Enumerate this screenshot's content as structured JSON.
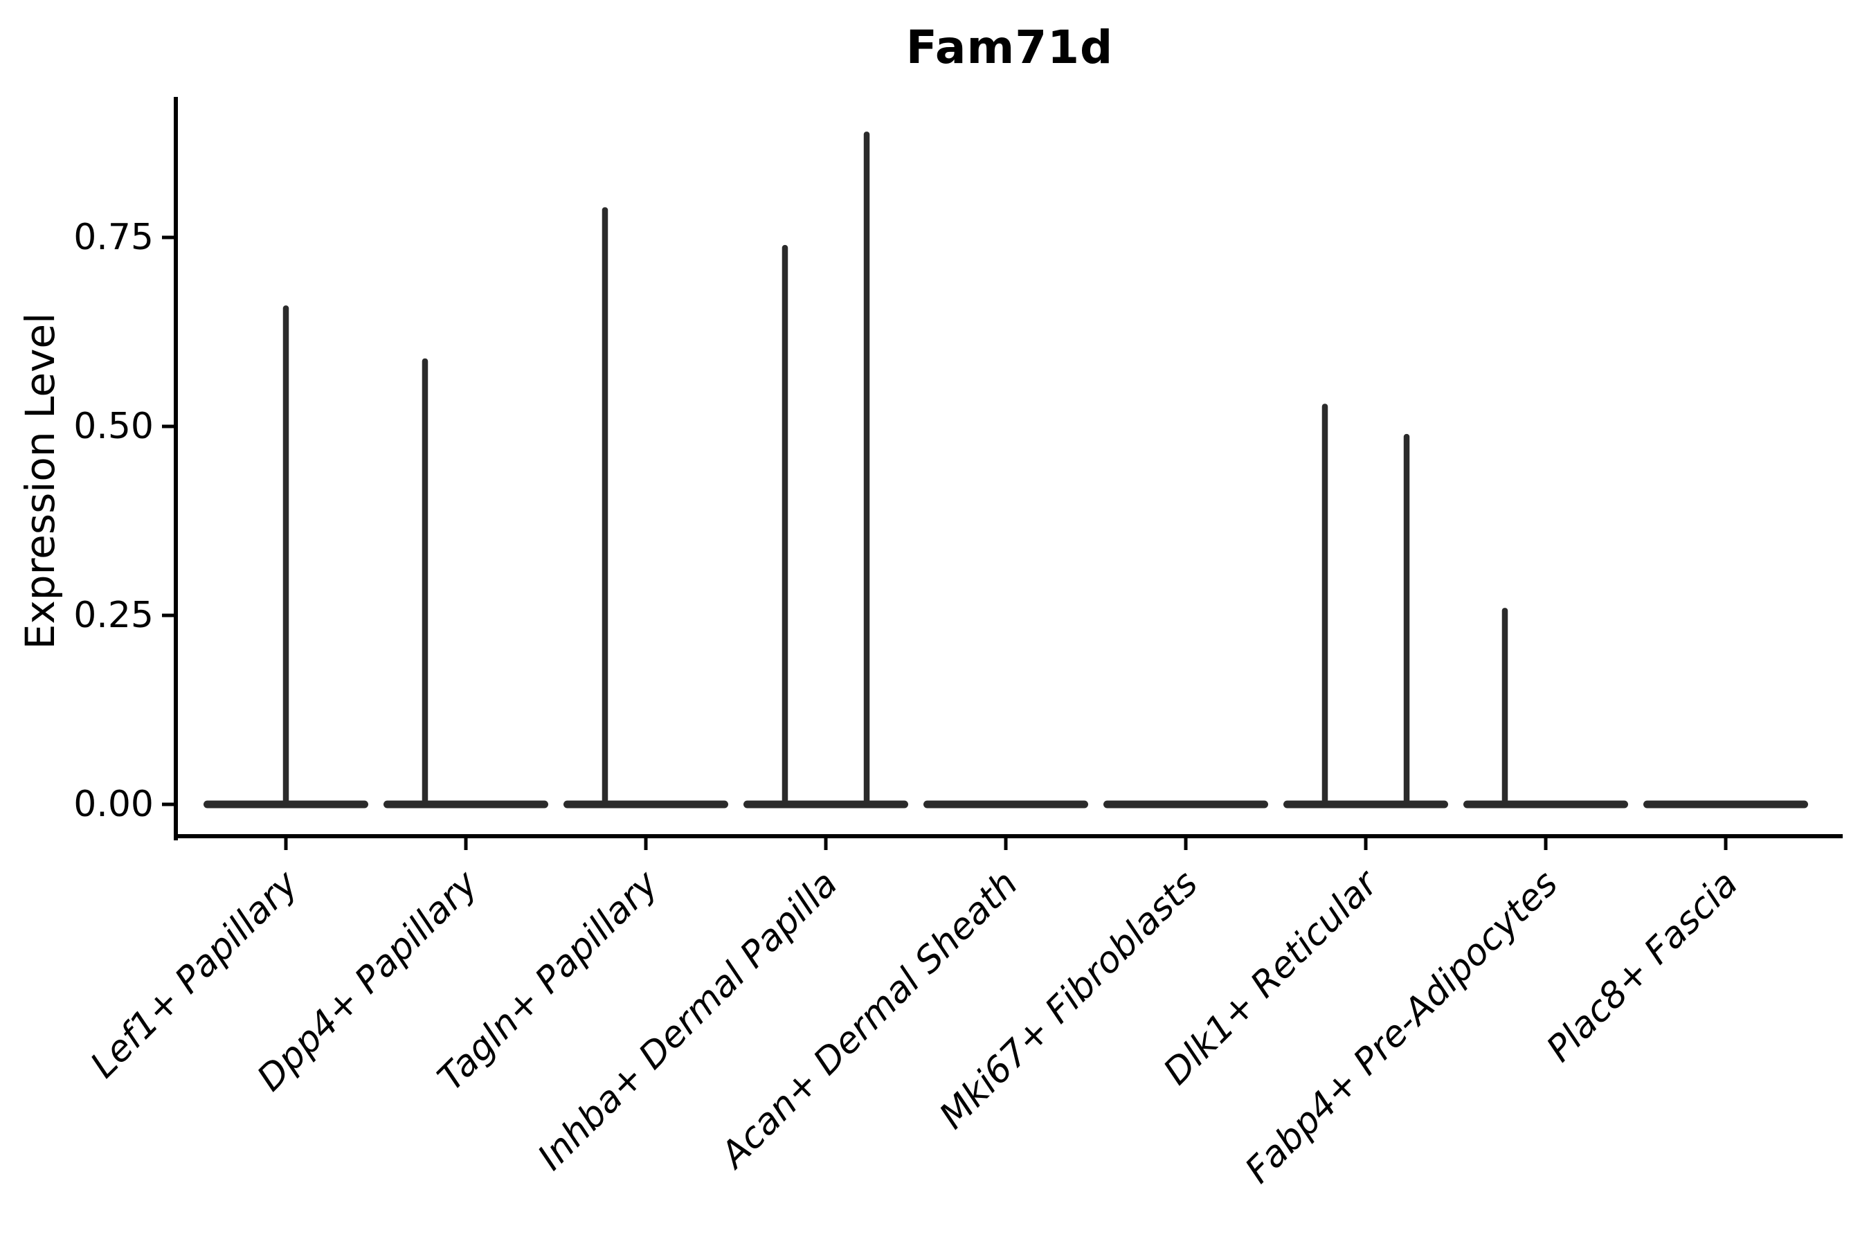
{
  "title": "Fam71d",
  "y_axis": {
    "label": "Expression Level",
    "tick_labels": [
      "0.00",
      "0.25",
      "0.50",
      "0.75"
    ],
    "tick_values": [
      0.0,
      0.25,
      0.5,
      0.75
    ]
  },
  "x_axis": {
    "categories": [
      "Lef1+ Papillary",
      "Dpp4+ Papillary",
      "Tagln+ Papillary",
      "Inhba+ Dermal Papilla",
      "Acan+ Dermal Sheath",
      "Mki67+ Fibroblasts",
      "Dlk1+ Reticular",
      "Fabp4+ Pre-Adipocytes",
      "Plac8+ Fascia"
    ]
  },
  "style": {
    "violin_color": "#2b2b2b",
    "axis_color": "#000000",
    "background_color": "#ffffff"
  },
  "chart_data": {
    "type": "violin",
    "title": "Fam71d",
    "xlabel": "",
    "ylabel": "Expression Level",
    "categories": [
      "Lef1+ Papillary",
      "Dpp4+ Papillary",
      "Tagln+ Papillary",
      "Inhba+ Dermal Papilla",
      "Acan+ Dermal Sheath",
      "Mki67+ Fibroblasts",
      "Dlk1+ Reticular",
      "Fabp4+ Pre-Adipocytes",
      "Plac8+ Fascia"
    ],
    "y_ticks": [
      0.0,
      0.25,
      0.5,
      0.75
    ],
    "ylim": [
      -0.04,
      0.94
    ],
    "baseline_value": 0.0,
    "grid": false,
    "legend": "none",
    "description": "Violin plot of Fam71d expression; bulk of density is a flat bar at expression 0 for every category, with thin vertical density spikes reaching the maximum expression values listed below.",
    "series": [
      {
        "category": "Lef1+ Papillary",
        "base_value": 0,
        "spikes": [
          {
            "x_offset_frac": 0.0,
            "max": 0.66
          }
        ]
      },
      {
        "category": "Dpp4+ Papillary",
        "base_value": 0,
        "spikes": [
          {
            "x_offset_frac": -0.227,
            "max": 0.59
          }
        ]
      },
      {
        "category": "Tagln+ Papillary",
        "base_value": 0,
        "spikes": [
          {
            "x_offset_frac": -0.227,
            "max": 0.79
          }
        ]
      },
      {
        "category": "Inhba+ Dermal Papilla",
        "base_value": 0,
        "spikes": [
          {
            "x_offset_frac": -0.227,
            "max": 0.74
          },
          {
            "x_offset_frac": 0.227,
            "max": 0.89
          }
        ]
      },
      {
        "category": "Acan+ Dermal Sheath",
        "base_value": 0,
        "spikes": []
      },
      {
        "category": "Mki67+ Fibroblasts",
        "base_value": 0,
        "spikes": []
      },
      {
        "category": "Dlk1+ Reticular",
        "base_value": 0,
        "spikes": [
          {
            "x_offset_frac": -0.227,
            "max": 0.53
          },
          {
            "x_offset_frac": 0.227,
            "max": 0.49
          }
        ]
      },
      {
        "category": "Fabp4+ Pre-Adipocytes",
        "base_value": 0,
        "spikes": [
          {
            "x_offset_frac": -0.227,
            "max": 0.26
          }
        ]
      },
      {
        "category": "Plac8+ Fascia",
        "base_value": 0,
        "spikes": []
      }
    ]
  }
}
